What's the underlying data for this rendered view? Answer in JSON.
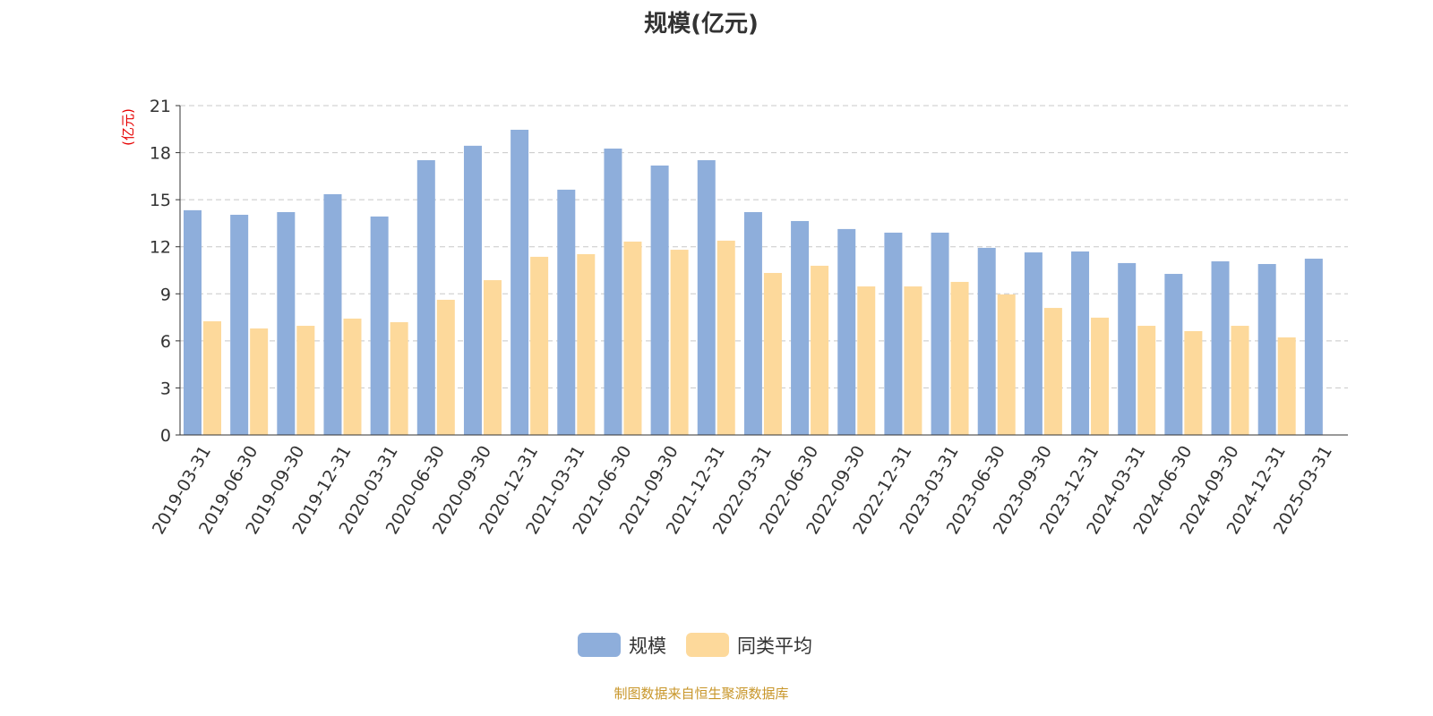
{
  "chart_data": {
    "type": "bar",
    "title": "规模(亿元)",
    "ylabel": "(亿元)",
    "xlabel": "",
    "ylim": [
      0,
      21
    ],
    "yticks": [
      0,
      3,
      6,
      9,
      12,
      15,
      18,
      21
    ],
    "grid": true,
    "legend_position": "bottom",
    "categories": [
      "2019-03-31",
      "2019-06-30",
      "2019-09-30",
      "2019-12-31",
      "2020-03-31",
      "2020-06-30",
      "2020-09-30",
      "2020-12-31",
      "2021-03-31",
      "2021-06-30",
      "2021-09-30",
      "2021-12-31",
      "2022-03-31",
      "2022-06-30",
      "2022-09-30",
      "2022-12-31",
      "2023-03-31",
      "2023-06-30",
      "2023-09-30",
      "2023-12-31",
      "2024-03-31",
      "2024-06-30",
      "2024-09-30",
      "2024-12-31",
      "2025-03-31"
    ],
    "series": [
      {
        "name": "规模",
        "color": "#8eaedb",
        "values": [
          14.33,
          14.04,
          14.21,
          15.35,
          13.93,
          17.52,
          18.44,
          19.46,
          15.64,
          18.26,
          17.18,
          17.52,
          14.21,
          13.64,
          13.13,
          12.9,
          12.9,
          11.93,
          11.64,
          11.7,
          10.96,
          10.27,
          11.07,
          10.9,
          11.24
        ]
      },
      {
        "name": "同类平均",
        "color": "#fdd99b",
        "values": [
          7.25,
          6.79,
          6.96,
          7.42,
          7.19,
          8.62,
          9.87,
          11.36,
          11.53,
          12.33,
          11.81,
          12.39,
          10.33,
          10.79,
          9.47,
          9.47,
          9.76,
          8.96,
          8.1,
          7.48,
          6.96,
          6.62,
          6.96,
          6.22,
          null
        ]
      }
    ]
  },
  "footer": "制图数据来自恒生聚源数据库"
}
